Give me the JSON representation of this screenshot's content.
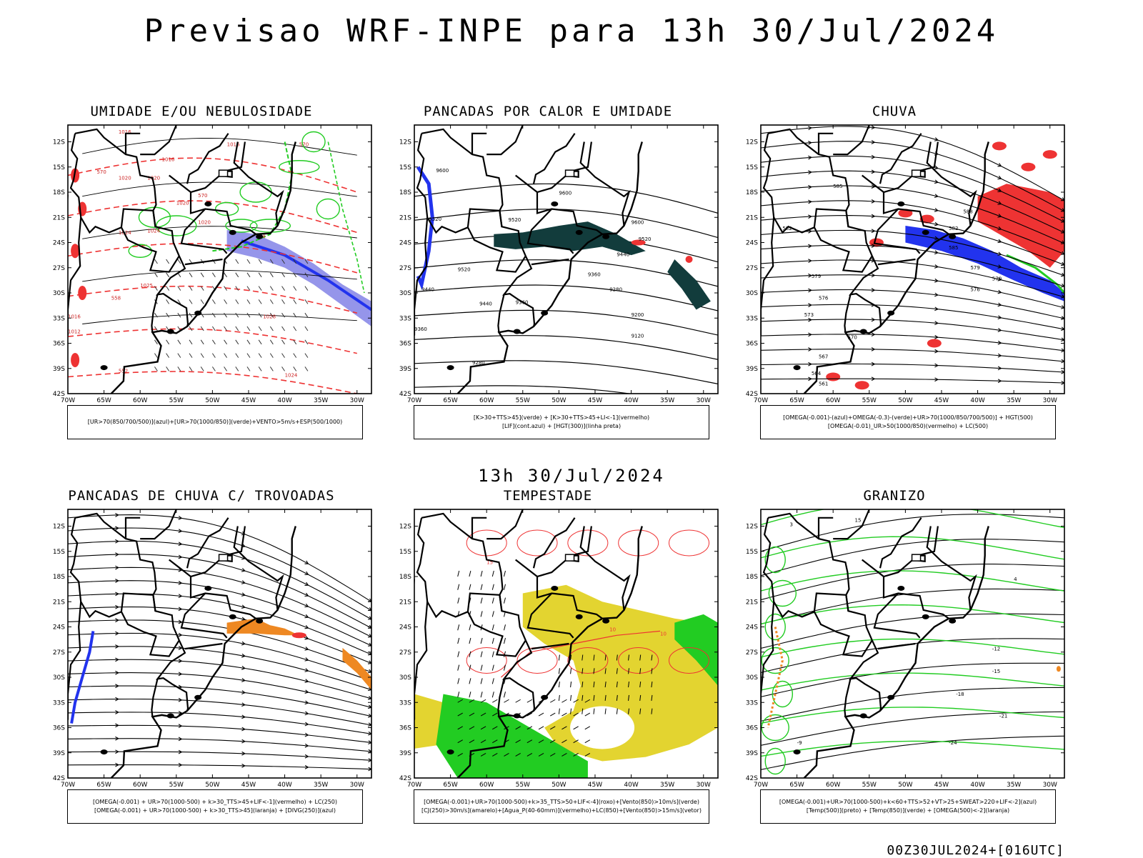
{
  "header": {
    "title": "Previsao WRF-INPE  para 13h 30/Jul/2024",
    "middle_title": "13h 30/Jul/2024",
    "footer": "00Z30JUL2024+[016UTC]"
  },
  "axes": {
    "lat_labels": [
      "12S",
      "15S",
      "18S",
      "21S",
      "24S",
      "27S",
      "30S",
      "33S",
      "36S",
      "39S",
      "42S"
    ],
    "lon_labels": [
      "70W",
      "65W",
      "60W",
      "55W",
      "50W",
      "45W",
      "40W",
      "35W",
      "30W"
    ]
  },
  "colors": {
    "background": "#ffffff",
    "border": "#000000",
    "blue": "#2233ee",
    "light_blue": "#8a8ae8",
    "green": "#22cc22",
    "red": "#ee3333",
    "dark_teal": "#123c3c",
    "yellow": "#e3d430",
    "orange": "#ee8822"
  },
  "panels": [
    {
      "id": "umidade",
      "title": "UMIDADE E/OU NEBULOSIDADE",
      "legend": [
        "[UR>70(850/700/500)](azul)+[UR>70(1000/850)](verde)+VENTO>5m/s+ESP(500/1000)"
      ],
      "contour_labels": [
        "1016",
        "1016",
        "1016",
        "1020",
        "1020",
        "1020",
        "1020",
        "1024",
        "1024",
        "1025",
        "1028",
        "1024",
        "1016",
        "1012",
        "570",
        "570",
        "570",
        "564",
        "558",
        "552"
      ]
    },
    {
      "id": "pancadas-calor",
      "title": "PANCADAS POR CALOR E UMIDADE",
      "legend": [
        "[K>30+TTS>45](verde) + [K>30+TTS>45+LI<-1](vermelho)",
        "[LIF](cont.azul) + [HGT(300)](linha preta)"
      ],
      "contour_labels": [
        "9600",
        "9600",
        "9600",
        "9520",
        "9520",
        "9520",
        "9520",
        "9440",
        "9440",
        "9440",
        "9360",
        "9360",
        "9360",
        "9280",
        "9280",
        "9200",
        "9120"
      ]
    },
    {
      "id": "chuva",
      "title": "CHUVA",
      "legend": [
        "[OMEGA(-0.001)-(azul)+OMEGA(-0.3)-(verde)+UR>70(1000/850/700/500)] + HGT(500)",
        "[OMEGA(-0.01)_UR>50(1000/850)(vermelho) + LC(500)"
      ],
      "contour_labels": [
        "585",
        "588",
        "582",
        "582",
        "585",
        "579",
        "579",
        "576",
        "576",
        "573",
        "570",
        "570",
        "567",
        "564",
        "561"
      ]
    },
    {
      "id": "pancadas-trovoadas",
      "title": "PANCADAS DE CHUVA C/ TROVOADAS",
      "legend": [
        "[OMEGA(-0.001) + UR>70(1000-500) + k>30_TTS>45+LIF<-1](vermelho) + LC(250)",
        "[OMEGA(-0.001) + UR>70(1000-500) + k>30_TTS>45](laranja) + [DIVG(250)](azul)"
      ],
      "contour_labels": []
    },
    {
      "id": "tempestade",
      "title": "TEMPESTADE",
      "legend": [
        "[OMEGA(-0.001)+UR>70(1000-500)+k>35_TTS>50+LIF<-4](roxo)+[Vento(850)>10m/s](verde)",
        "[CJ(250)>30m/s](amarelo)+[Agua_P(40-60mm)](vermelho)+LC(850)+[Vento(850)>15m/s](vetor)"
      ],
      "contour_labels": [
        "10",
        "10",
        "15"
      ]
    },
    {
      "id": "granizo",
      "title": "GRANIZO",
      "legend": [
        "[OMEGA(-0.001)+UR>70(1000-500)+k<60+TTS>52+VT>25+SWEAT>220+LIF<-2](azul)",
        "[Temp(500)](preto) + [Temp(850)](verde) + [OMEGA(500)<-2](laranja)"
      ],
      "contour_labels": [
        "-12",
        "-15",
        "-18",
        "-21",
        "-24",
        "-9",
        "3",
        "15",
        "4"
      ]
    }
  ]
}
